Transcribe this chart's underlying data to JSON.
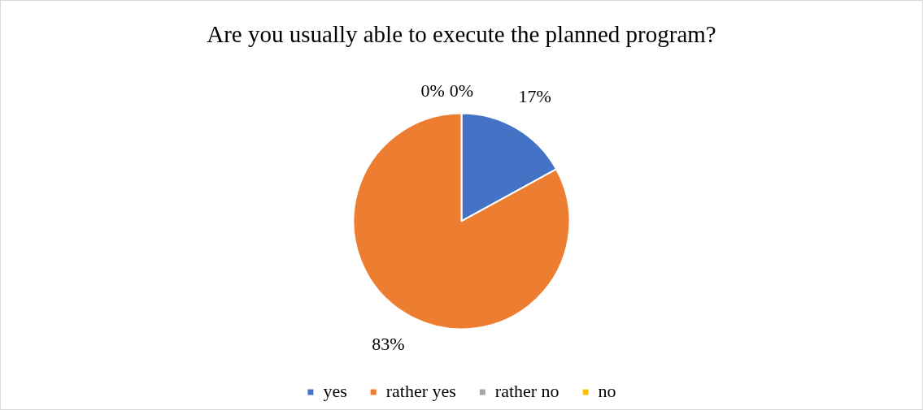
{
  "chart_data": {
    "type": "pie",
    "title": "Are you usually able to execute the planned program?",
    "categories": [
      "yes",
      "rather yes",
      "rather no",
      "no"
    ],
    "values": [
      17,
      83,
      0,
      0
    ],
    "colors": [
      "#4472c4",
      "#ed7d31",
      "#a5a5a5",
      "#ffc000"
    ],
    "value_labels": [
      "17%",
      "83%",
      "0%",
      "0%"
    ],
    "legend": "bottom"
  }
}
